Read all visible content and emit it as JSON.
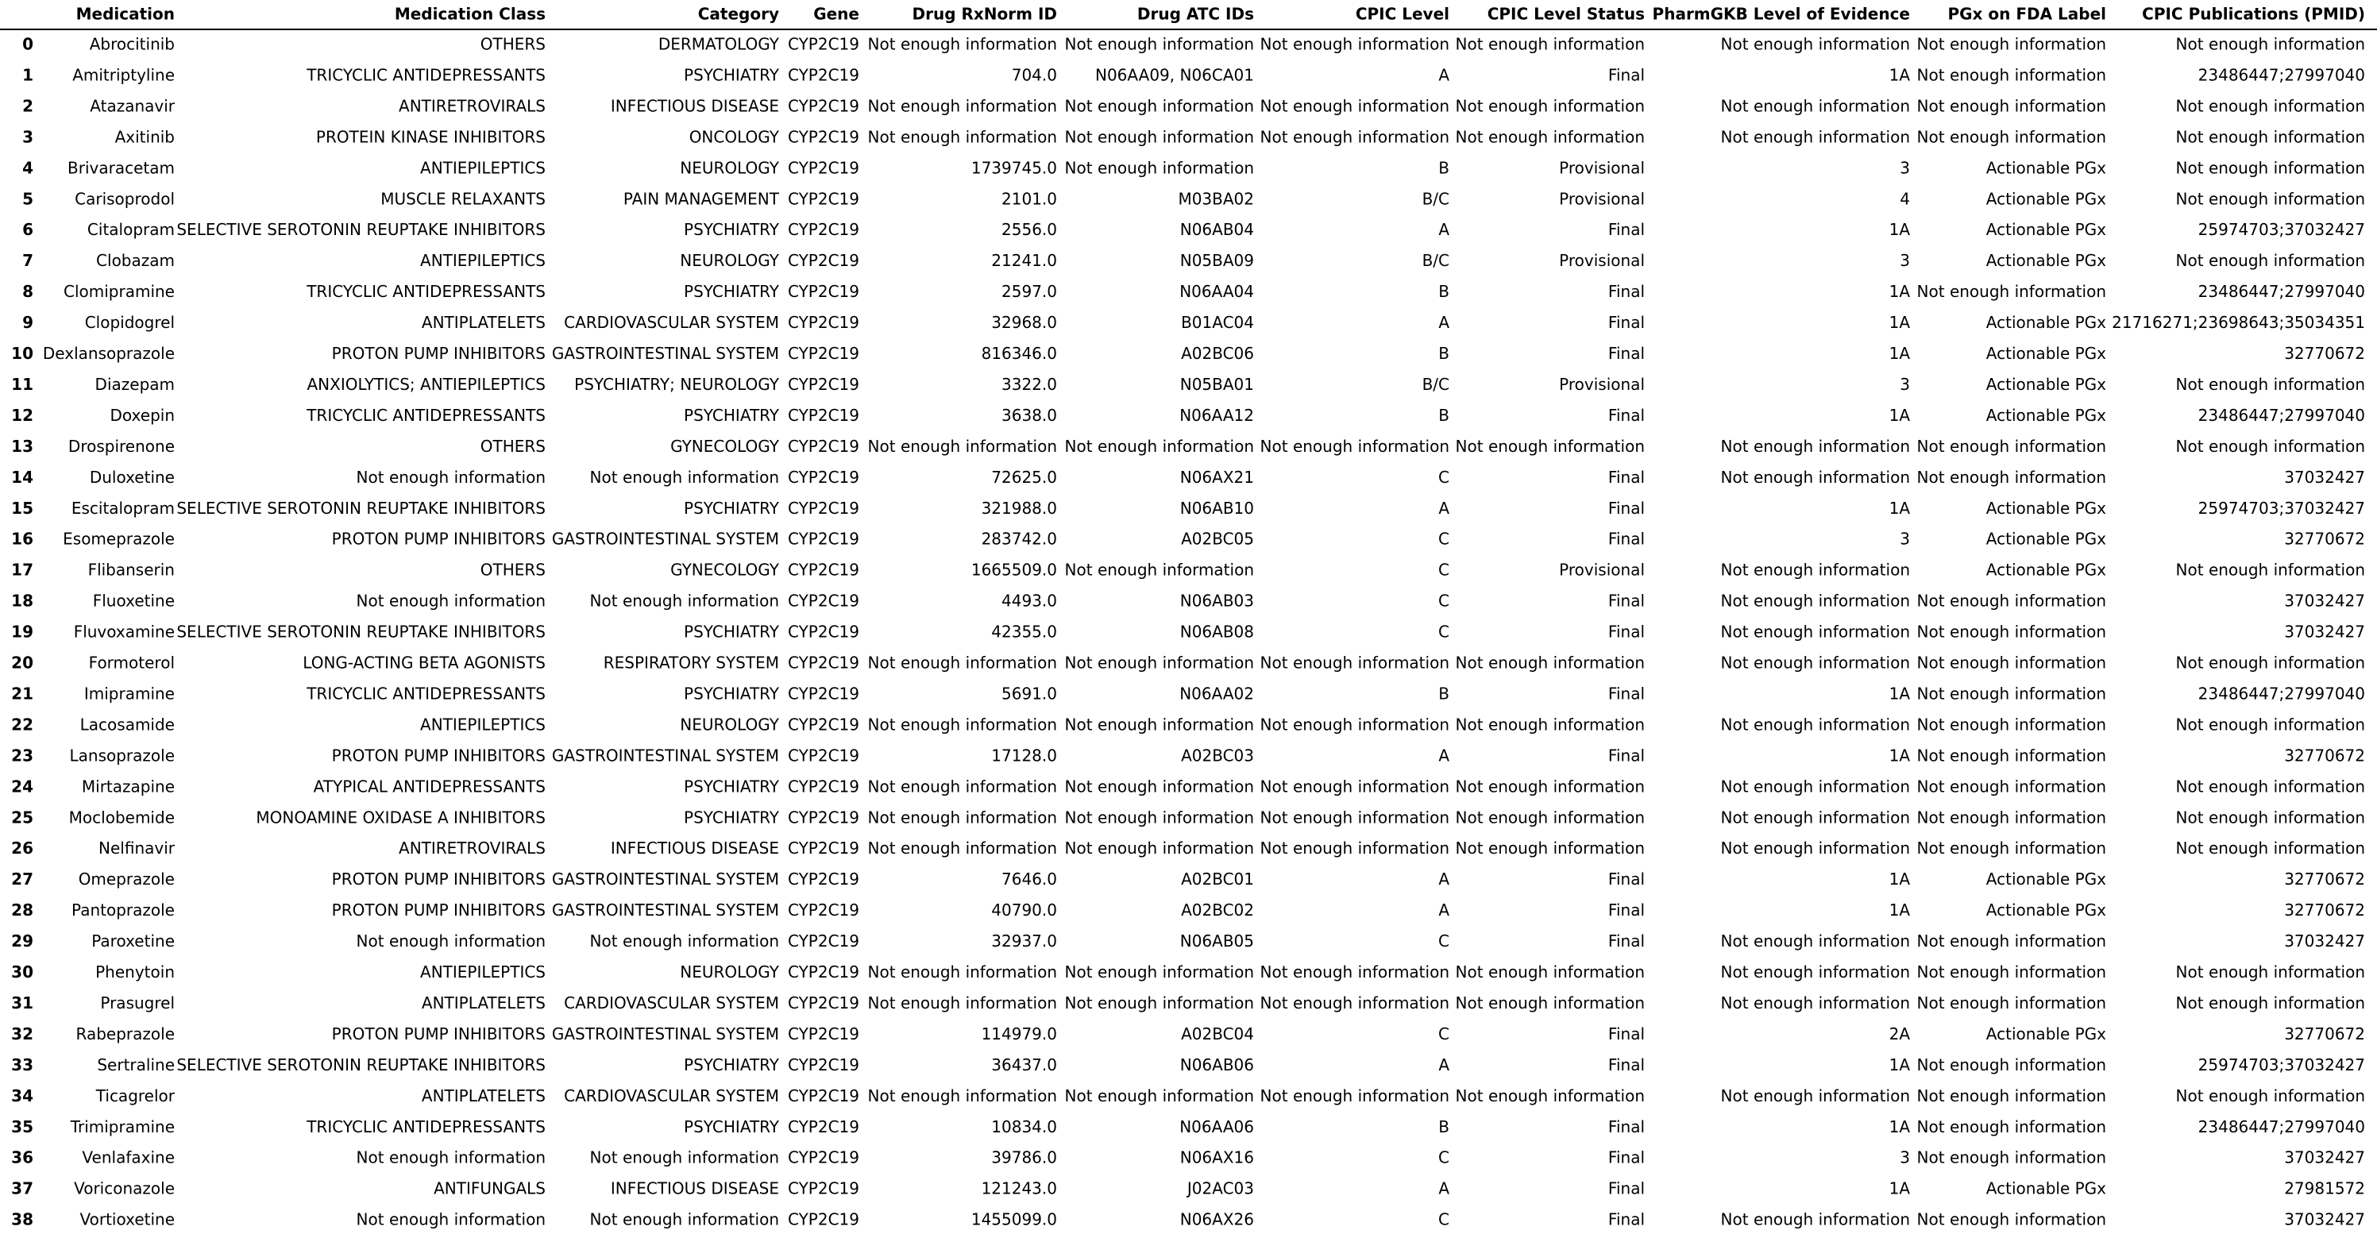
{
  "table": {
    "columns": [
      "Medication",
      "Medication Class",
      "Category",
      "Gene",
      "Drug RxNorm ID",
      "Drug ATC IDs",
      "CPIC Level",
      "CPIC Level Status",
      "PharmGKB Level of Evidence",
      "PGx on FDA Label",
      "CPIC Publications (PMID)"
    ],
    "rows": [
      {
        "index": "0",
        "cells": [
          "Abrocitinib",
          "OTHERS",
          "DERMATOLOGY",
          "CYP2C19",
          "Not enough information",
          "Not enough information",
          "Not enough information",
          "Not enough information",
          "Not enough information",
          "Not enough information",
          "Not enough information"
        ]
      },
      {
        "index": "1",
        "cells": [
          "Amitriptyline",
          "TRICYCLIC ANTIDEPRESSANTS",
          "PSYCHIATRY",
          "CYP2C19",
          "704.0",
          "N06AA09, N06CA01",
          "A",
          "Final",
          "1A",
          "Not enough information",
          "23486447;27997040"
        ]
      },
      {
        "index": "2",
        "cells": [
          "Atazanavir",
          "ANTIRETROVIRALS",
          "INFECTIOUS DISEASE",
          "CYP2C19",
          "Not enough information",
          "Not enough information",
          "Not enough information",
          "Not enough information",
          "Not enough information",
          "Not enough information",
          "Not enough information"
        ]
      },
      {
        "index": "3",
        "cells": [
          "Axitinib",
          "PROTEIN KINASE INHIBITORS",
          "ONCOLOGY",
          "CYP2C19",
          "Not enough information",
          "Not enough information",
          "Not enough information",
          "Not enough information",
          "Not enough information",
          "Not enough information",
          "Not enough information"
        ]
      },
      {
        "index": "4",
        "cells": [
          "Brivaracetam",
          "ANTIEPILEPTICS",
          "NEUROLOGY",
          "CYP2C19",
          "1739745.0",
          "Not enough information",
          "B",
          "Provisional",
          "3",
          "Actionable PGx",
          "Not enough information"
        ]
      },
      {
        "index": "5",
        "cells": [
          "Carisoprodol",
          "MUSCLE RELAXANTS",
          "PAIN MANAGEMENT",
          "CYP2C19",
          "2101.0",
          "M03BA02",
          "B/C",
          "Provisional",
          "4",
          "Actionable PGx",
          "Not enough information"
        ]
      },
      {
        "index": "6",
        "cells": [
          "Citalopram",
          "SELECTIVE SEROTONIN REUPTAKE INHIBITORS",
          "PSYCHIATRY",
          "CYP2C19",
          "2556.0",
          "N06AB04",
          "A",
          "Final",
          "1A",
          "Actionable PGx",
          "25974703;37032427"
        ]
      },
      {
        "index": "7",
        "cells": [
          "Clobazam",
          "ANTIEPILEPTICS",
          "NEUROLOGY",
          "CYP2C19",
          "21241.0",
          "N05BA09",
          "B/C",
          "Provisional",
          "3",
          "Actionable PGx",
          "Not enough information"
        ]
      },
      {
        "index": "8",
        "cells": [
          "Clomipramine",
          "TRICYCLIC ANTIDEPRESSANTS",
          "PSYCHIATRY",
          "CYP2C19",
          "2597.0",
          "N06AA04",
          "B",
          "Final",
          "1A",
          "Not enough information",
          "23486447;27997040"
        ]
      },
      {
        "index": "9",
        "cells": [
          "Clopidogrel",
          "ANTIPLATELETS",
          "CARDIOVASCULAR SYSTEM",
          "CYP2C19",
          "32968.0",
          "B01AC04",
          "A",
          "Final",
          "1A",
          "Actionable PGx",
          "21716271;23698643;35034351"
        ]
      },
      {
        "index": "10",
        "cells": [
          "Dexlansoprazole",
          "PROTON PUMP INHIBITORS",
          "GASTROINTESTINAL SYSTEM",
          "CYP2C19",
          "816346.0",
          "A02BC06",
          "B",
          "Final",
          "1A",
          "Actionable PGx",
          "32770672"
        ]
      },
      {
        "index": "11",
        "cells": [
          "Diazepam",
          "ANXIOLYTICS; ANTIEPILEPTICS",
          "PSYCHIATRY; NEUROLOGY",
          "CYP2C19",
          "3322.0",
          "N05BA01",
          "B/C",
          "Provisional",
          "3",
          "Actionable PGx",
          "Not enough information"
        ]
      },
      {
        "index": "12",
        "cells": [
          "Doxepin",
          "TRICYCLIC ANTIDEPRESSANTS",
          "PSYCHIATRY",
          "CYP2C19",
          "3638.0",
          "N06AA12",
          "B",
          "Final",
          "1A",
          "Actionable PGx",
          "23486447;27997040"
        ]
      },
      {
        "index": "13",
        "cells": [
          "Drospirenone",
          "OTHERS",
          "GYNECOLOGY",
          "CYP2C19",
          "Not enough information",
          "Not enough information",
          "Not enough information",
          "Not enough information",
          "Not enough information",
          "Not enough information",
          "Not enough information"
        ]
      },
      {
        "index": "14",
        "cells": [
          "Duloxetine",
          "Not enough information",
          "Not enough information",
          "CYP2C19",
          "72625.0",
          "N06AX21",
          "C",
          "Final",
          "Not enough information",
          "Not enough information",
          "37032427"
        ]
      },
      {
        "index": "15",
        "cells": [
          "Escitalopram",
          "SELECTIVE SEROTONIN REUPTAKE INHIBITORS",
          "PSYCHIATRY",
          "CYP2C19",
          "321988.0",
          "N06AB10",
          "A",
          "Final",
          "1A",
          "Actionable PGx",
          "25974703;37032427"
        ]
      },
      {
        "index": "16",
        "cells": [
          "Esomeprazole",
          "PROTON PUMP INHIBITORS",
          "GASTROINTESTINAL SYSTEM",
          "CYP2C19",
          "283742.0",
          "A02BC05",
          "C",
          "Final",
          "3",
          "Actionable PGx",
          "32770672"
        ]
      },
      {
        "index": "17",
        "cells": [
          "Flibanserin",
          "OTHERS",
          "GYNECOLOGY",
          "CYP2C19",
          "1665509.0",
          "Not enough information",
          "C",
          "Provisional",
          "Not enough information",
          "Actionable PGx",
          "Not enough information"
        ]
      },
      {
        "index": "18",
        "cells": [
          "Fluoxetine",
          "Not enough information",
          "Not enough information",
          "CYP2C19",
          "4493.0",
          "N06AB03",
          "C",
          "Final",
          "Not enough information",
          "Not enough information",
          "37032427"
        ]
      },
      {
        "index": "19",
        "cells": [
          "Fluvoxamine",
          "SELECTIVE SEROTONIN REUPTAKE INHIBITORS",
          "PSYCHIATRY",
          "CYP2C19",
          "42355.0",
          "N06AB08",
          "C",
          "Final",
          "Not enough information",
          "Not enough information",
          "37032427"
        ]
      },
      {
        "index": "20",
        "cells": [
          "Formoterol",
          "LONG-ACTING BETA AGONISTS",
          "RESPIRATORY SYSTEM",
          "CYP2C19",
          "Not enough information",
          "Not enough information",
          "Not enough information",
          "Not enough information",
          "Not enough information",
          "Not enough information",
          "Not enough information"
        ]
      },
      {
        "index": "21",
        "cells": [
          "Imipramine",
          "TRICYCLIC ANTIDEPRESSANTS",
          "PSYCHIATRY",
          "CYP2C19",
          "5691.0",
          "N06AA02",
          "B",
          "Final",
          "1A",
          "Not enough information",
          "23486447;27997040"
        ]
      },
      {
        "index": "22",
        "cells": [
          "Lacosamide",
          "ANTIEPILEPTICS",
          "NEUROLOGY",
          "CYP2C19",
          "Not enough information",
          "Not enough information",
          "Not enough information",
          "Not enough information",
          "Not enough information",
          "Not enough information",
          "Not enough information"
        ]
      },
      {
        "index": "23",
        "cells": [
          "Lansoprazole",
          "PROTON PUMP INHIBITORS",
          "GASTROINTESTINAL SYSTEM",
          "CYP2C19",
          "17128.0",
          "A02BC03",
          "A",
          "Final",
          "1A",
          "Not enough information",
          "32770672"
        ]
      },
      {
        "index": "24",
        "cells": [
          "Mirtazapine",
          "ATYPICAL ANTIDEPRESSANTS",
          "PSYCHIATRY",
          "CYP2C19",
          "Not enough information",
          "Not enough information",
          "Not enough information",
          "Not enough information",
          "Not enough information",
          "Not enough information",
          "Not enough information"
        ]
      },
      {
        "index": "25",
        "cells": [
          "Moclobemide",
          "MONOAMINE OXIDASE A INHIBITORS",
          "PSYCHIATRY",
          "CYP2C19",
          "Not enough information",
          "Not enough information",
          "Not enough information",
          "Not enough information",
          "Not enough information",
          "Not enough information",
          "Not enough information"
        ]
      },
      {
        "index": "26",
        "cells": [
          "Nelfinavir",
          "ANTIRETROVIRALS",
          "INFECTIOUS DISEASE",
          "CYP2C19",
          "Not enough information",
          "Not enough information",
          "Not enough information",
          "Not enough information",
          "Not enough information",
          "Not enough information",
          "Not enough information"
        ]
      },
      {
        "index": "27",
        "cells": [
          "Omeprazole",
          "PROTON PUMP INHIBITORS",
          "GASTROINTESTINAL SYSTEM",
          "CYP2C19",
          "7646.0",
          "A02BC01",
          "A",
          "Final",
          "1A",
          "Actionable PGx",
          "32770672"
        ]
      },
      {
        "index": "28",
        "cells": [
          "Pantoprazole",
          "PROTON PUMP INHIBITORS",
          "GASTROINTESTINAL SYSTEM",
          "CYP2C19",
          "40790.0",
          "A02BC02",
          "A",
          "Final",
          "1A",
          "Actionable PGx",
          "32770672"
        ]
      },
      {
        "index": "29",
        "cells": [
          "Paroxetine",
          "Not enough information",
          "Not enough information",
          "CYP2C19",
          "32937.0",
          "N06AB05",
          "C",
          "Final",
          "Not enough information",
          "Not enough information",
          "37032427"
        ]
      },
      {
        "index": "30",
        "cells": [
          "Phenytoin",
          "ANTIEPILEPTICS",
          "NEUROLOGY",
          "CYP2C19",
          "Not enough information",
          "Not enough information",
          "Not enough information",
          "Not enough information",
          "Not enough information",
          "Not enough information",
          "Not enough information"
        ]
      },
      {
        "index": "31",
        "cells": [
          "Prasugrel",
          "ANTIPLATELETS",
          "CARDIOVASCULAR SYSTEM",
          "CYP2C19",
          "Not enough information",
          "Not enough information",
          "Not enough information",
          "Not enough information",
          "Not enough information",
          "Not enough information",
          "Not enough information"
        ]
      },
      {
        "index": "32",
        "cells": [
          "Rabeprazole",
          "PROTON PUMP INHIBITORS",
          "GASTROINTESTINAL SYSTEM",
          "CYP2C19",
          "114979.0",
          "A02BC04",
          "C",
          "Final",
          "2A",
          "Actionable PGx",
          "32770672"
        ]
      },
      {
        "index": "33",
        "cells": [
          "Sertraline",
          "SELECTIVE SEROTONIN REUPTAKE INHIBITORS",
          "PSYCHIATRY",
          "CYP2C19",
          "36437.0",
          "N06AB06",
          "A",
          "Final",
          "1A",
          "Not enough information",
          "25974703;37032427"
        ]
      },
      {
        "index": "34",
        "cells": [
          "Ticagrelor",
          "ANTIPLATELETS",
          "CARDIOVASCULAR SYSTEM",
          "CYP2C19",
          "Not enough information",
          "Not enough information",
          "Not enough information",
          "Not enough information",
          "Not enough information",
          "Not enough information",
          "Not enough information"
        ]
      },
      {
        "index": "35",
        "cells": [
          "Trimipramine",
          "TRICYCLIC ANTIDEPRESSANTS",
          "PSYCHIATRY",
          "CYP2C19",
          "10834.0",
          "N06AA06",
          "B",
          "Final",
          "1A",
          "Not enough information",
          "23486447;27997040"
        ]
      },
      {
        "index": "36",
        "cells": [
          "Venlafaxine",
          "Not enough information",
          "Not enough information",
          "CYP2C19",
          "39786.0",
          "N06AX16",
          "C",
          "Final",
          "3",
          "Not enough information",
          "37032427"
        ]
      },
      {
        "index": "37",
        "cells": [
          "Voriconazole",
          "ANTIFUNGALS",
          "INFECTIOUS DISEASE",
          "CYP2C19",
          "121243.0",
          "J02AC03",
          "A",
          "Final",
          "1A",
          "Actionable PGx",
          "27981572"
        ]
      },
      {
        "index": "38",
        "cells": [
          "Vortioxetine",
          "Not enough information",
          "Not enough information",
          "CYP2C19",
          "1455099.0",
          "N06AX26",
          "C",
          "Final",
          "Not enough information",
          "Not enough information",
          "37032427"
        ]
      }
    ]
  }
}
